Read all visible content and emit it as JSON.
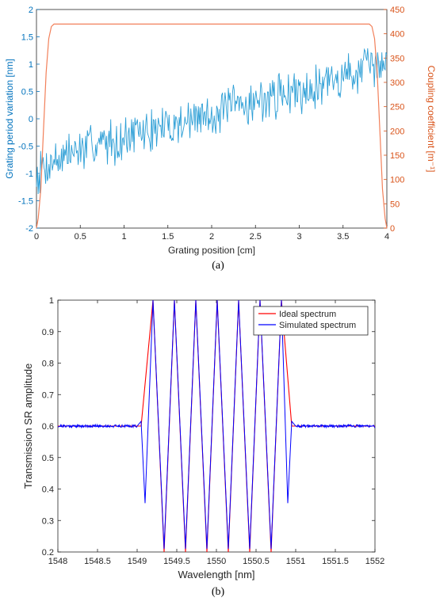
{
  "chart_data": [
    {
      "type": "line",
      "panel_label": "(a)",
      "xlabel": "Grating position [cm]",
      "ylabel_left": "Grating period variation [nm]",
      "ylabel_right": "Coupling coefficient [m⁻¹]",
      "xlim": [
        0,
        4
      ],
      "ylim_left": [
        -2,
        2
      ],
      "ylim_right": [
        0,
        450
      ],
      "xticks": [
        "0",
        "0.5",
        "1",
        "1.5",
        "2",
        "2.5",
        "3",
        "3.5",
        "4"
      ],
      "yticks_left": [
        "-2",
        "-1.5",
        "-1",
        "-0.5",
        "0",
        "0.5",
        "1",
        "1.5",
        "2"
      ],
      "yticks_right": [
        "0",
        "50",
        "100",
        "150",
        "200",
        "250",
        "300",
        "350",
        "400",
        "450"
      ],
      "colors": {
        "left_axis": "#0072BD",
        "period": "#2E9FD6",
        "coupling": "#F2805A",
        "right_axis": "#D95319"
      },
      "series": [
        {
          "axis": "left",
          "color": "#2E9FD6",
          "x": [
            0.0,
            0.1,
            0.2,
            0.3,
            0.4,
            0.5,
            0.6,
            0.7,
            0.8,
            0.9,
            1.0,
            1.1,
            1.2,
            1.3,
            1.4,
            1.5,
            1.6,
            1.7,
            1.8,
            1.9,
            2.0,
            2.1,
            2.2,
            2.3,
            2.4,
            2.5,
            2.6,
            2.7,
            2.8,
            2.9,
            3.0,
            3.1,
            3.2,
            3.3,
            3.4,
            3.5,
            3.6,
            3.7,
            3.8,
            3.9,
            4.0
          ],
          "y": [
            -1.0,
            -0.85,
            -0.75,
            -0.7,
            -0.62,
            -0.58,
            -0.5,
            -0.45,
            -0.42,
            -0.38,
            -0.35,
            -0.3,
            -0.25,
            -0.22,
            -0.18,
            -0.15,
            -0.1,
            -0.05,
            0.0,
            0.05,
            0.08,
            0.12,
            0.18,
            0.22,
            0.28,
            0.32,
            0.35,
            0.4,
            0.45,
            0.5,
            0.52,
            0.58,
            0.62,
            0.68,
            0.72,
            0.78,
            0.82,
            0.88,
            0.92,
            0.98,
            1.0
          ],
          "noise_amplitude": 0.35
        },
        {
          "axis": "right",
          "color": "#F2805A",
          "x": [
            0,
            0.02,
            0.05,
            0.08,
            0.11,
            0.14,
            0.17,
            0.2,
            3.8,
            3.83,
            3.86,
            3.89,
            3.92,
            3.95,
            3.98,
            4.0
          ],
          "y": [
            0,
            20,
            80,
            200,
            320,
            390,
            415,
            420,
            420,
            415,
            390,
            320,
            200,
            80,
            20,
            0
          ]
        }
      ]
    },
    {
      "type": "line",
      "panel_label": "(b)",
      "xlabel": "Wavelength [nm]",
      "ylabel": "Transmission SR amplitude",
      "xlim": [
        1548,
        1552
      ],
      "ylim": [
        0.2,
        1
      ],
      "xticks": [
        "1548",
        "1548.5",
        "1549",
        "1549.5",
        "1550",
        "1550.5",
        "1551",
        "1551.5",
        "1552"
      ],
      "yticks": [
        "0.2",
        "0.3",
        "0.4",
        "0.5",
        "0.6",
        "0.7",
        "0.8",
        "0.9",
        "1"
      ],
      "legend": {
        "placement": "top-right",
        "entries": [
          "Ideal spectrum",
          "Simulated spectrum"
        ]
      },
      "colors": {
        "ideal": "#FF0000",
        "simulated": "#0000FF"
      },
      "series": [
        {
          "name": "Ideal spectrum",
          "color": "#FF0000",
          "x": [
            1548,
            1549.05,
            1549.2,
            1549.34,
            1549.47,
            1549.61,
            1549.74,
            1549.88,
            1550.01,
            1550.15,
            1550.28,
            1550.42,
            1550.55,
            1550.69,
            1550.82,
            1550.95,
            1552
          ],
          "y": [
            0.6,
            0.6,
            1,
            0.2,
            1,
            0.2,
            1,
            0.2,
            1,
            0.2,
            1,
            0.2,
            1,
            0.2,
            1,
            0.6,
            0.6
          ]
        },
        {
          "name": "Simulated spectrum",
          "color": "#0000FF",
          "x": [
            1548,
            1549.0,
            1549.05,
            1549.1,
            1549.2,
            1549.34,
            1549.47,
            1549.61,
            1549.74,
            1549.88,
            1550.01,
            1550.15,
            1550.28,
            1550.42,
            1550.55,
            1550.69,
            1550.82,
            1550.9,
            1550.95,
            1551.0,
            1552
          ],
          "y": [
            0.6,
            0.6,
            0.615,
            0.355,
            1,
            0.21,
            1,
            0.21,
            1,
            0.21,
            1,
            0.21,
            1,
            0.21,
            1,
            0.21,
            1,
            0.355,
            0.615,
            0.6,
            0.6
          ],
          "ripple_amplitude": 0.004
        }
      ]
    }
  ]
}
